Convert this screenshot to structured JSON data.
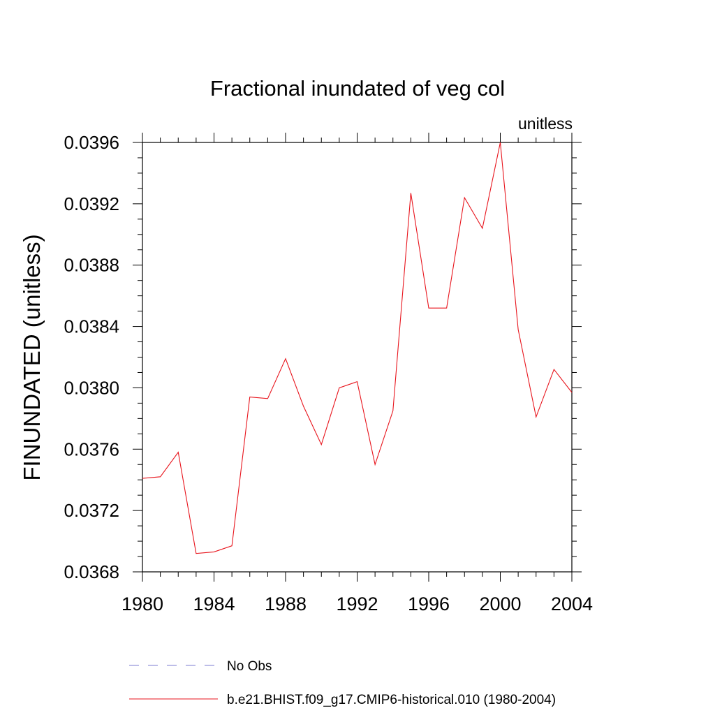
{
  "chart_data": {
    "type": "line",
    "title": "Fractional inundated of veg col",
    "units_label": "unitless",
    "ylabel": "FINUNDATED  (unitless)",
    "xlabel": "",
    "xlim": [
      1980,
      2004
    ],
    "ylim": [
      0.0368,
      0.0396
    ],
    "x_ticks": [
      "1980",
      "1984",
      "1988",
      "1992",
      "1996",
      "2000",
      "2004"
    ],
    "y_ticks": [
      "0.0368",
      "0.0372",
      "0.0376",
      "0.0380",
      "0.0384",
      "0.0388",
      "0.0392",
      "0.0396"
    ],
    "grid": false,
    "legend_position": "bottom",
    "series": [
      {
        "name": "b.e21.BHIST.f09_g17.CMIP6-historical.010 (1980-2004)",
        "color": "#e8141c",
        "style": "solid",
        "x": [
          1980,
          1981,
          1982,
          1983,
          1984,
          1985,
          1986,
          1987,
          1988,
          1989,
          1990,
          1991,
          1992,
          1993,
          1994,
          1995,
          1996,
          1997,
          1998,
          1999,
          2000,
          2001,
          2002,
          2003,
          2004
        ],
        "values": [
          0.03741,
          0.03742,
          0.03758,
          0.03692,
          0.03693,
          0.03697,
          0.03794,
          0.03793,
          0.03819,
          0.03788,
          0.03763,
          0.038,
          0.03804,
          0.0375,
          0.03785,
          0.03927,
          0.03852,
          0.03852,
          0.03924,
          0.03904,
          0.0396,
          0.03838,
          0.03781,
          0.03812,
          0.03797
        ]
      }
    ],
    "legend": [
      {
        "label": "No Obs",
        "color": "#7b7bd1",
        "style": "dashed"
      },
      {
        "label": "b.e21.BHIST.f09_g17.CMIP6-historical.010 (1980-2004)",
        "color": "#e8141c",
        "style": "solid"
      }
    ]
  }
}
